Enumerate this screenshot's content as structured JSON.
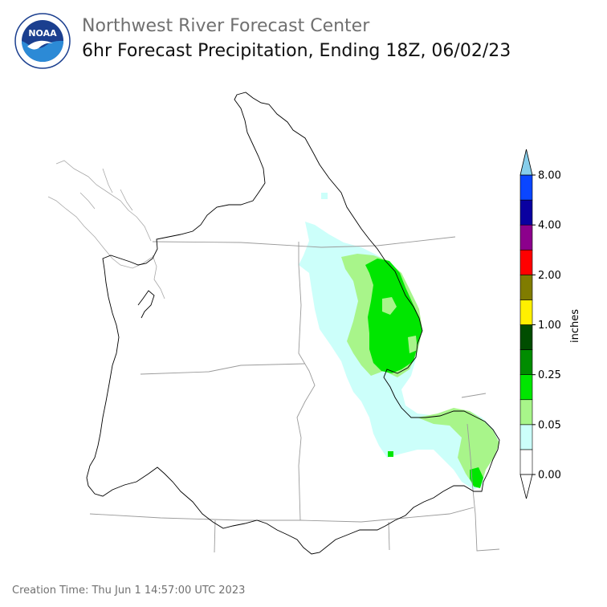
{
  "header": {
    "agency": "Northwest River Forecast Center",
    "product": "6hr Forecast Precipitation, Ending 18Z, 06/02/23"
  },
  "logo": {
    "text": "NOAA",
    "ring_text": "NATIONAL OCEANIC AND ATMOSPHERIC ADMINISTRATION · U.S. DEPARTMENT OF COMMERCE"
  },
  "colorbar": {
    "unit_label": "inches",
    "tick_labels": [
      "0.00",
      "0.05",
      "0.25",
      "1.00",
      "2.00",
      "4.00",
      "8.00"
    ],
    "colors": [
      "#ffffff",
      "#ccfffa",
      "#a8f58a",
      "#00e600",
      "#008c00",
      "#004d00",
      "#fff000",
      "#807c00",
      "#ff0000",
      "#8c008c",
      "#0a00a0",
      "#0a46ff",
      "#87ceeb"
    ]
  },
  "map": {
    "precip_colors": {
      "light": "#ccfffa",
      "medium": "#a8f58a",
      "heavy": "#00e600",
      "darker": "#00b000"
    }
  },
  "footer": {
    "creation_time": "Creation Time: Thu Jun 1 14:57:00 UTC 2023"
  }
}
